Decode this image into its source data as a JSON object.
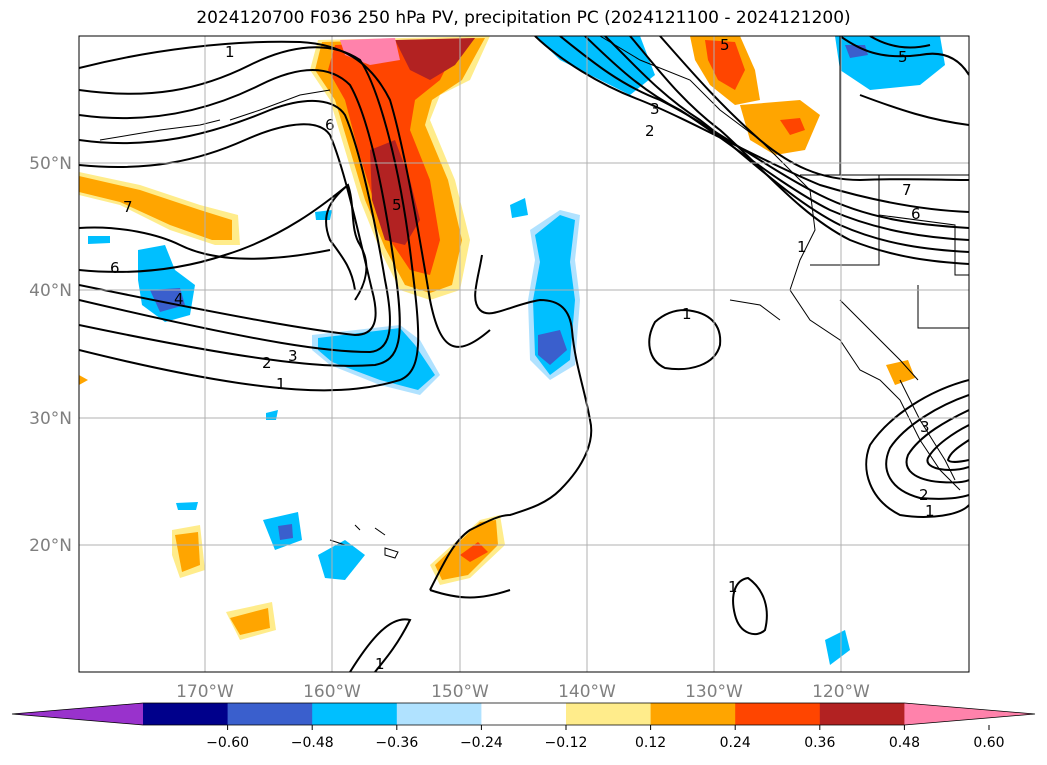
{
  "title": "2024120700 F036 250 hPa PV, precipitation PC (2024121100 - 2024121200)",
  "lat_labels": [
    "50°N",
    "40°N",
    "30°N",
    "20°N"
  ],
  "lon_labels": [
    "170°W",
    "160°W",
    "150°W",
    "140°W",
    "130°W",
    "120°W"
  ],
  "contour_labels": [
    "1",
    "6",
    "5",
    "7",
    "6",
    "4",
    "2",
    "3",
    "1",
    "1",
    "5",
    "3",
    "2",
    "1",
    "7",
    "6",
    "1",
    "2",
    "1",
    "1",
    "3",
    "5"
  ],
  "colorbar": {
    "ticks": [
      "−0.60",
      "−0.48",
      "−0.36",
      "−0.24",
      "−0.12",
      "0.12",
      "0.24",
      "0.36",
      "0.48",
      "0.60"
    ],
    "colors": [
      "#9932cc",
      "#00008b",
      "#3a5fcd",
      "#00bfff",
      "#b0e2ff",
      "#ffffff",
      "#ffec8b",
      "#ffa500",
      "#ff4500",
      "#b22222",
      "#ff82ab"
    ]
  },
  "shading_colors": {
    "pos1": "#ffec8b",
    "pos2": "#ffa500",
    "pos3": "#ff4500",
    "pos4": "#b22222",
    "pos5": "#ff82ab",
    "neg1": "#b0e2ff",
    "neg2": "#00bfff",
    "neg3": "#3a5fcd",
    "neg4": "#00008b"
  }
}
